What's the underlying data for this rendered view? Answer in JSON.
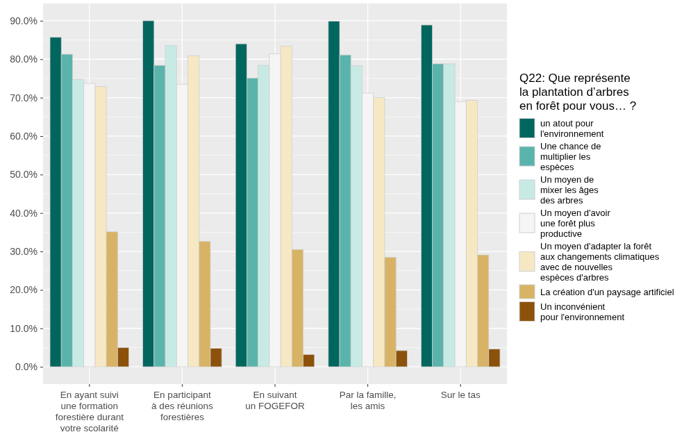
{
  "chart_data": {
    "type": "bar",
    "categories": [
      "En ayant suivi\nune formation\nforestière durant\nvotre scolarité",
      "En participant\nà des réunions\nforestières",
      "En suivant\nun FOGEFOR",
      "Par la famille,\nles amis",
      "Sur le tas"
    ],
    "legend_title": "Q22: Que représente\nla plantation d’arbres\nen forêt pour vous… ?",
    "series": [
      {
        "name": "un atout pour\nl'environnement",
        "color": "#01665e",
        "values": [
          85.7,
          90.0,
          84.0,
          89.9,
          88.9
        ]
      },
      {
        "name": "Une chance de\nmultiplier les\nespèces",
        "color": "#5ab4ac",
        "values": [
          81.3,
          78.4,
          75.1,
          81.1,
          78.8
        ]
      },
      {
        "name": "Un moyen de\nmixer les âges\ndes arbres",
        "color": "#c7eae5",
        "values": [
          74.8,
          83.6,
          78.4,
          78.3,
          78.8
        ]
      },
      {
        "name": "Un moyen d'avoir\nune forêt plus\nproductive",
        "color": "#f5f5f5",
        "values": [
          73.7,
          73.5,
          81.4,
          71.2,
          69.0
        ]
      },
      {
        "name": "Un moyen d'adapter la forêt\naux changements climatiques\navec de nouvelles\nespèces d'arbres",
        "color": "#f6e8c3",
        "values": [
          72.9,
          80.9,
          83.4,
          70.0,
          69.3
        ]
      },
      {
        "name": "La création d'un paysage artificiel",
        "color": "#d8b365",
        "values": [
          35.1,
          32.6,
          30.5,
          28.5,
          29.1
        ]
      },
      {
        "name": "Un inconvénient\npour l'environnement",
        "color": "#8c510a",
        "values": [
          5.0,
          4.8,
          3.2,
          4.2,
          4.6
        ]
      }
    ],
    "ylim": [
      -4.5,
      94.5
    ],
    "yticks": [
      {
        "value": 0,
        "label": "0.0%"
      },
      {
        "value": 10,
        "label": "10.0%"
      },
      {
        "value": 20,
        "label": "20.0%"
      },
      {
        "value": 30,
        "label": "30.0%"
      },
      {
        "value": 40,
        "label": "40.0%"
      },
      {
        "value": 50,
        "label": "50.0%"
      },
      {
        "value": 60,
        "label": "60.0%"
      },
      {
        "value": 70,
        "label": "70.0%"
      },
      {
        "value": 80,
        "label": "80.0%"
      },
      {
        "value": 90,
        "label": "90.0%"
      }
    ],
    "grid": true,
    "legend": "right"
  }
}
